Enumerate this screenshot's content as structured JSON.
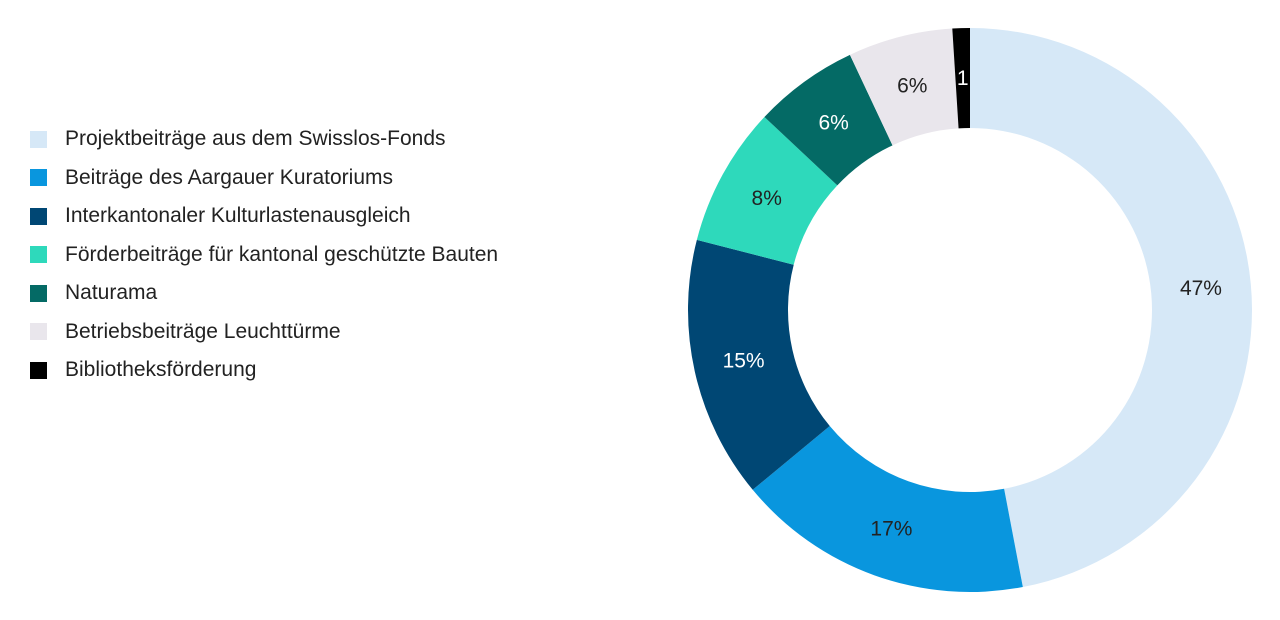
{
  "chart_data": {
    "type": "pie",
    "donut": true,
    "legend_position": "left",
    "slices": [
      {
        "label": "Projektbeiträge aus dem Swisslos-Fonds",
        "value": 47,
        "display": "47%",
        "color": "#d6e8f7",
        "label_color": "#222222"
      },
      {
        "label": "Beiträge des Aargauer Kuratoriums",
        "value": 17,
        "display": "17%",
        "color": "#0996de",
        "label_color": "#222222"
      },
      {
        "label": "Interkantonaler Kulturlastenausgleich",
        "value": 15,
        "display": "15%",
        "color": "#004774",
        "label_color": "#ffffff"
      },
      {
        "label": "Förderbeiträge für kantonal geschützte Bauten",
        "value": 8,
        "display": "8%",
        "color": "#2ed9bb",
        "label_color": "#222222"
      },
      {
        "label": "Naturama",
        "value": 6,
        "display": "6%",
        "color": "#046a65",
        "label_color": "#ffffff"
      },
      {
        "label": "Betriebsbeiträge Leuchttürme",
        "value": 6,
        "display": "6%",
        "color": "#e9e6ec",
        "label_color": "#222222"
      },
      {
        "label": "Bibliotheksförderung",
        "value": 1,
        "display": "1",
        "color": "#000000",
        "label_color": "#ffffff"
      }
    ]
  }
}
